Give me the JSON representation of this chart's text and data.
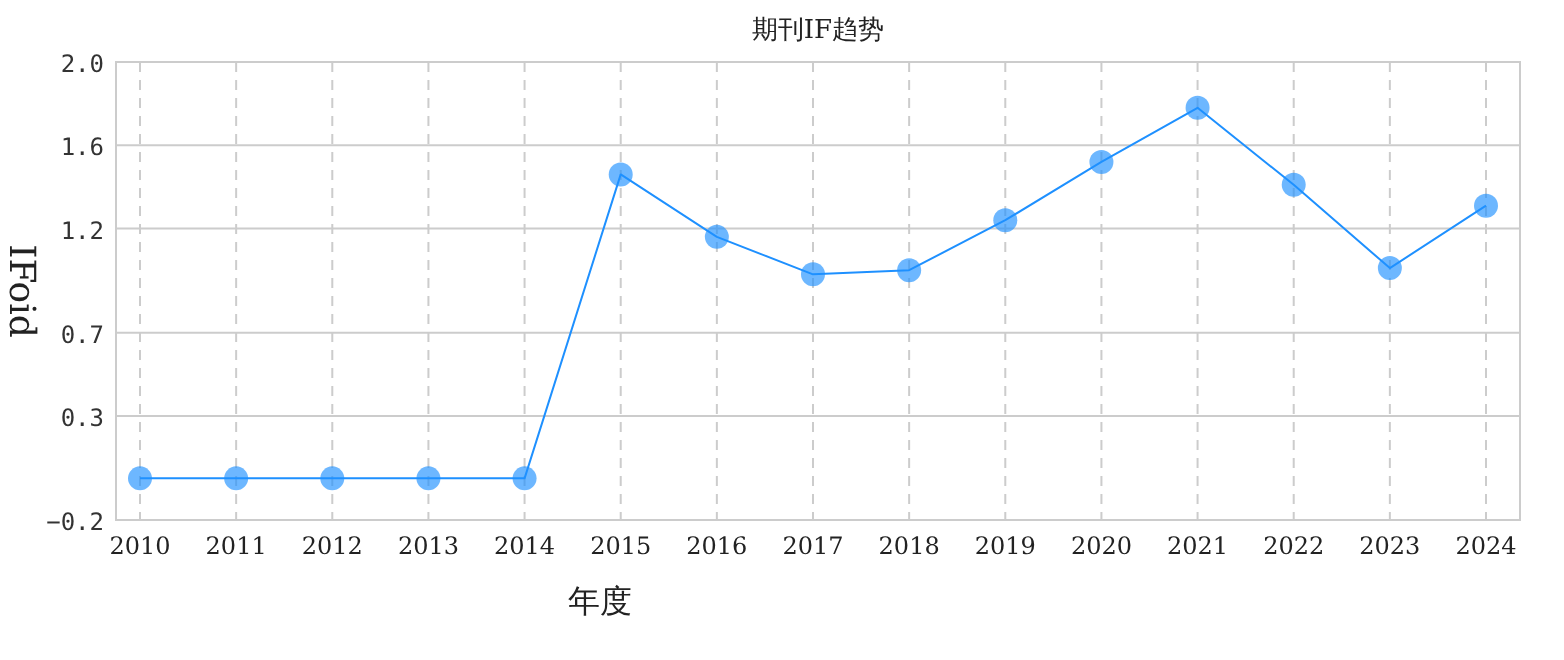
{
  "chart_data": {
    "type": "line",
    "title": "期刊IF趋势",
    "xlabel": "年度",
    "ylabel": "IFoid",
    "categories": [
      "2010",
      "2011",
      "2012",
      "2013",
      "2014",
      "2015",
      "2016",
      "2017",
      "2018",
      "2019",
      "2020",
      "2021",
      "2022",
      "2023",
      "2024"
    ],
    "series": [
      {
        "color": "#1e90ff",
        "values": [
          0,
          0,
          0,
          0,
          0,
          1.46,
          1.16,
          0.98,
          1.0,
          1.24,
          1.52,
          1.78,
          1.41,
          1.01,
          1.31
        ]
      }
    ],
    "ylim": [
      -0.2,
      2.0
    ],
    "yticks": [
      -0.2,
      0.3,
      0.7,
      1.2,
      1.6,
      {
        "value": 2.0,
        "label": "2.0"
      }
    ],
    "grid": true,
    "marker": "circle",
    "line_style": "solid"
  }
}
